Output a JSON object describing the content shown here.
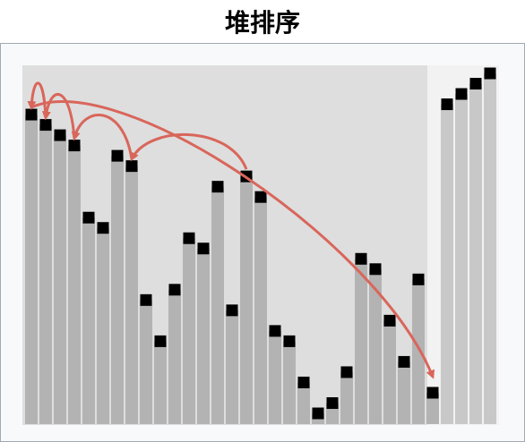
{
  "title": "堆排序",
  "chart_data": {
    "type": "bar",
    "values": [
      29,
      28,
      27,
      26,
      19,
      18,
      25,
      24,
      11,
      7,
      12,
      17,
      16,
      22,
      10,
      23,
      21,
      8,
      7,
      3,
      0,
      1,
      4,
      15,
      14,
      9,
      5,
      13,
      2
    ],
    "sorted_values": [
      30,
      31,
      32,
      33
    ],
    "ylim": [
      0,
      33
    ],
    "arrows": [
      {
        "from": 1,
        "to": 0
      },
      {
        "from": 3,
        "to": 1
      },
      {
        "from": 7,
        "to": 3
      },
      {
        "from": 15,
        "to": 7
      },
      {
        "from": 0,
        "to": 28
      }
    ]
  },
  "colors": {
    "bar": "#b3b3b3",
    "bar_sorted": "#c8c8c8",
    "marker": "#000000",
    "active_bg": "#dedede",
    "sorted_bg": "#f2f2f2",
    "arrow": "#d9665b"
  }
}
